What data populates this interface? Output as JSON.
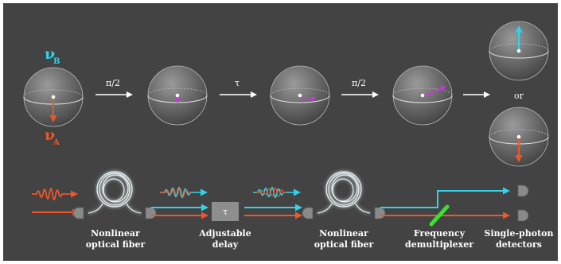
{
  "top_row": {
    "nu_b": "ν",
    "nu_b_sub": "B",
    "nu_a": "ν",
    "nu_a_sub": "A",
    "op_1": "π/2",
    "op_2": "τ",
    "op_3": "π/2",
    "or": "or"
  },
  "bottom_row": {
    "delay_symbol": "τ",
    "fiber_1": [
      "Nonlinear",
      "optical fiber"
    ],
    "delay": [
      "Adjustable",
      "delay"
    ],
    "fiber_2": [
      "Nonlinear",
      "optical fiber"
    ],
    "demux": [
      "Frequency",
      "demultiplexer"
    ],
    "detectors": [
      "Single-photon",
      "detectors"
    ]
  },
  "colors": {
    "background": "#434343",
    "nu_b": "#2fd3ea",
    "nu_a": "#f0562a",
    "state_vector": "#c23bd6",
    "demultiplexer": "#39e22e",
    "arrows": "#ffffff"
  }
}
